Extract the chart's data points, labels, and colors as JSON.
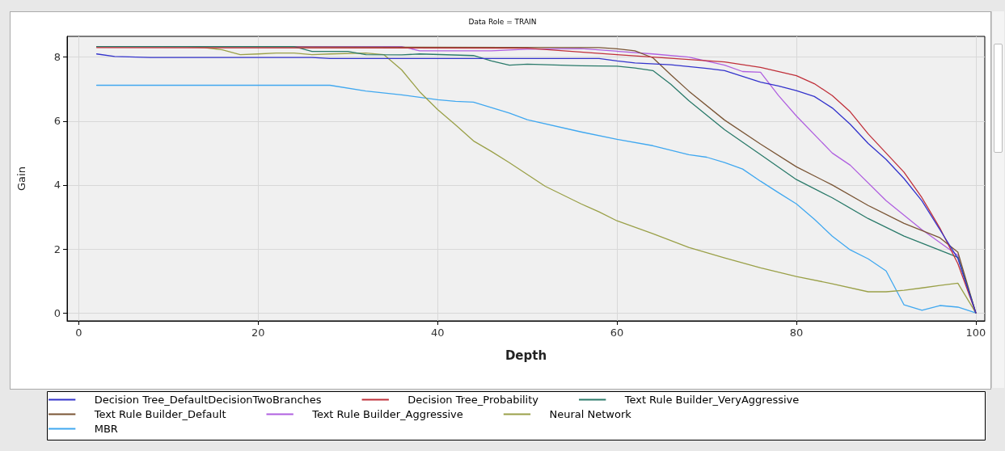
{
  "chart_data": {
    "type": "line",
    "title": "Data Role = TRAIN",
    "xlabel": "Depth",
    "ylabel": "Gain",
    "xlim": [
      -1.3,
      101
    ],
    "xticks": [
      0,
      20,
      40,
      60,
      80,
      100
    ],
    "ylim": [
      -0.25,
      8.65
    ],
    "yticks": [
      0,
      2,
      4,
      6,
      8
    ],
    "grid": true,
    "legend": "bottom",
    "marker": "none",
    "line_style": "solid",
    "series": [
      {
        "name": "Decision Tree_DefaultDecisionTwoBranches",
        "color": "#3333cc",
        "x": [
          2,
          4,
          8,
          26,
          28,
          58,
          60,
          62,
          66,
          70,
          72,
          76,
          78,
          80,
          82,
          84,
          86,
          88,
          90,
          92,
          94,
          96,
          98,
          100
        ],
        "values": [
          8.1,
          8.02,
          7.99,
          7.99,
          7.96,
          7.96,
          7.88,
          7.82,
          7.76,
          7.65,
          7.58,
          7.22,
          7.1,
          6.95,
          6.77,
          6.41,
          5.9,
          5.3,
          4.8,
          4.2,
          3.5,
          2.6,
          1.7,
          0
        ]
      },
      {
        "name": "Decision Tree_Probability",
        "color": "#c0303a",
        "x": [
          2,
          50,
          60,
          72,
          76,
          80,
          82,
          84,
          86,
          88,
          90,
          92,
          94,
          96,
          98,
          100
        ],
        "values": [
          8.3,
          8.28,
          8.08,
          7.85,
          7.68,
          7.42,
          7.17,
          6.8,
          6.29,
          5.6,
          5.0,
          4.4,
          3.6,
          2.65,
          1.54,
          0
        ]
      },
      {
        "name": "Text Rule Builder_VeryAggressive",
        "color": "#2a7a6a",
        "x": [
          2,
          24,
          26,
          30,
          32,
          36,
          38,
          44,
          46,
          48,
          50,
          56,
          60,
          62,
          64,
          66,
          68,
          72,
          76,
          80,
          84,
          88,
          92,
          98,
          100
        ],
        "values": [
          8.33,
          8.33,
          8.18,
          8.18,
          8.08,
          8.07,
          8.1,
          8.05,
          7.88,
          7.75,
          7.78,
          7.73,
          7.72,
          7.66,
          7.58,
          7.15,
          6.64,
          5.73,
          4.95,
          4.17,
          3.6,
          2.95,
          2.4,
          1.74,
          0
        ]
      },
      {
        "name": "Text Rule Builder_Default",
        "color": "#7a5535",
        "x": [
          2,
          58,
          60,
          62,
          64,
          66,
          68,
          72,
          76,
          80,
          84,
          88,
          92,
          96,
          98,
          100
        ],
        "values": [
          8.33,
          8.3,
          8.26,
          8.2,
          7.98,
          7.45,
          6.94,
          6.03,
          5.28,
          4.57,
          4.0,
          3.36,
          2.8,
          2.35,
          1.9,
          0
        ]
      },
      {
        "name": "Text Rule Builder_Aggressive",
        "color": "#b060e0",
        "x": [
          2,
          36,
          38,
          46,
          50,
          56,
          64,
          68,
          72,
          74,
          76,
          78,
          80,
          84,
          86,
          90,
          94,
          98,
          100
        ],
        "values": [
          8.33,
          8.33,
          8.2,
          8.2,
          8.25,
          8.27,
          8.1,
          8.0,
          7.75,
          7.55,
          7.53,
          6.8,
          6.16,
          5.0,
          4.62,
          3.51,
          2.6,
          1.8,
          0
        ]
      },
      {
        "name": "Neural Network",
        "color": "#9aa048",
        "x": [
          2,
          12,
          14,
          16,
          18,
          20,
          22,
          24,
          26,
          28,
          32,
          34,
          36,
          38,
          40,
          42,
          44,
          46,
          48,
          52,
          56,
          58,
          60,
          64,
          68,
          72,
          76,
          80,
          84,
          88,
          90,
          92,
          94,
          96,
          98,
          100
        ],
        "values": [
          8.33,
          8.33,
          8.3,
          8.23,
          8.08,
          8.1,
          8.13,
          8.13,
          8.08,
          8.1,
          8.13,
          8.08,
          7.6,
          6.92,
          6.36,
          5.88,
          5.38,
          5.05,
          4.7,
          3.96,
          3.41,
          3.16,
          2.88,
          2.48,
          2.05,
          1.72,
          1.41,
          1.14,
          0.91,
          0.66,
          0.66,
          0.71,
          0.78,
          0.86,
          0.93,
          0
        ]
      },
      {
        "name": "MBR",
        "color": "#40a8f0",
        "x": [
          2,
          28,
          32,
          36,
          40,
          42,
          44,
          48,
          50,
          56,
          60,
          64,
          68,
          70,
          72,
          74,
          76,
          78,
          80,
          82,
          84,
          86,
          88,
          90,
          92,
          94,
          96,
          98,
          100
        ],
        "values": [
          7.12,
          7.12,
          6.94,
          6.82,
          6.67,
          6.62,
          6.59,
          6.25,
          6.04,
          5.66,
          5.43,
          5.23,
          4.95,
          4.87,
          4.7,
          4.5,
          4.12,
          3.76,
          3.41,
          2.93,
          2.4,
          1.97,
          1.69,
          1.31,
          0.25,
          0.08,
          0.23,
          0.18,
          0
        ]
      }
    ]
  }
}
